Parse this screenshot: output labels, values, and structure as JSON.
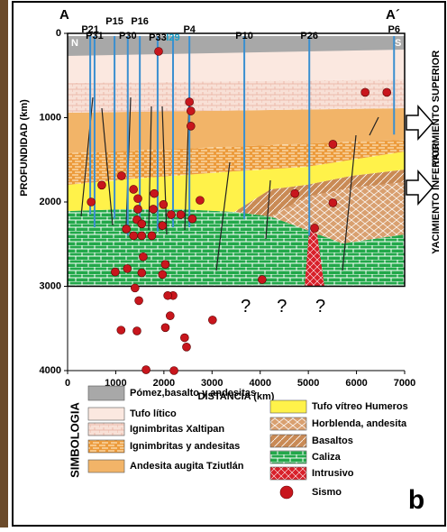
{
  "chart_data": {
    "type": "scatter",
    "section_start": "A",
    "section_end": "A´",
    "north": "N",
    "south": "S",
    "xlabel": "DISTANCIA (km)",
    "ylabel": "PROFUNDIDAD (km)",
    "xlim": [
      0,
      7000
    ],
    "ylim": [
      0,
      4000
    ],
    "xticks": [
      0,
      1000,
      2000,
      3000,
      4000,
      5000,
      6000,
      7000
    ],
    "yticks": [
      0,
      1000,
      2000,
      3000,
      4000
    ],
    "wells": [
      {
        "name": "P21",
        "x": 470,
        "bottom": 2150
      },
      {
        "name": "P31",
        "x": 560,
        "bottom": 2300
      },
      {
        "name": "P15",
        "x": 975,
        "bottom": 2200
      },
      {
        "name": "P30",
        "x": 1250,
        "bottom": 2400
      },
      {
        "name": "P16",
        "x": 1500,
        "bottom": 2300
      },
      {
        "name": "P33",
        "x": 1870,
        "bottom": 2350
      },
      {
        "name": "I29",
        "x": 2190,
        "bottom": 2300
      },
      {
        "name": "P4",
        "x": 2530,
        "bottom": 2300
      },
      {
        "name": "P10",
        "x": 3670,
        "bottom": 2200
      },
      {
        "name": "P26",
        "x": 5020,
        "bottom": 2400
      },
      {
        "name": "P6",
        "x": 6780,
        "bottom": 1200
      }
    ],
    "points": {
      "name": "Sismo",
      "color": "#c8161d",
      "x": [
        1890,
        2530,
        2560,
        2560,
        6180,
        6630,
        5510,
        490,
        710,
        1120,
        1370,
        1460,
        1460,
        1440,
        1220,
        1370,
        1540,
        1750,
        1970,
        2150,
        2350,
        2590,
        1780,
        1540,
        1990,
        1800,
        2750,
        4720,
        5510,
        5130,
        990,
        1240,
        1540,
        1970,
        2030,
        1400,
        1480,
        2190,
        2080,
        2130,
        1110,
        1440,
        2030,
        2430,
        2470,
        3010,
        1630,
        2210,
        4040,
        1570
      ],
      "y": [
        214,
        813,
        920,
        1100,
        700,
        700,
        1315,
        2000,
        1800,
        1690,
        1850,
        1960,
        2085,
        2210,
        2320,
        2400,
        2400,
        2400,
        2280,
        2150,
        2150,
        2200,
        2085,
        2260,
        2030,
        1900,
        1980,
        1900,
        2010,
        2310,
        2830,
        2790,
        2840,
        2860,
        2740,
        3020,
        3170,
        3110,
        3110,
        3350,
        3520,
        3530,
        3490,
        3610,
        3720,
        3400,
        3990,
        4000,
        2920,
        2650
      ]
    },
    "annotations": [
      "?",
      "?",
      "?"
    ],
    "reservoirs": [
      "YACIMIENTO SUPERIOR",
      "YACIMIENTO INFERIOR"
    ],
    "legend_title": "SIMBOLOGIA",
    "legend": [
      "Pómez,basalto y andesitas",
      "Tufo lítico",
      "Ignimbritas Xaltipan",
      "Ignimbritas y andesitas",
      "Andesita augita Tziutlán",
      "Tufo vítreo Humeros",
      "Horblenda, andesita",
      "Basaltos",
      "Caliza",
      "Intrusivo",
      "Sismo"
    ],
    "panel": "b"
  }
}
